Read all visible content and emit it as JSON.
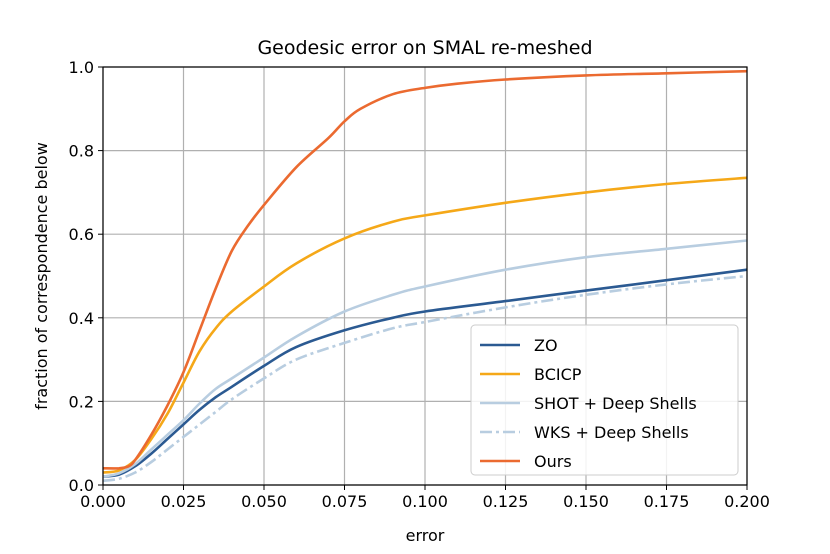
{
  "chart_data": {
    "type": "line",
    "title": "Geodesic error on SMAL re-meshed",
    "xlabel": "error",
    "ylabel": "fraction of correspondence below",
    "xlim": [
      0.0,
      0.2
    ],
    "ylim": [
      0.0,
      1.0
    ],
    "xticks": [
      "0.000",
      "0.025",
      "0.050",
      "0.075",
      "0.100",
      "0.125",
      "0.150",
      "0.175",
      "0.200"
    ],
    "yticks": [
      "0.0",
      "0.2",
      "0.4",
      "0.6",
      "0.8",
      "1.0"
    ],
    "grid": true,
    "legend_position": "lower-right",
    "series": [
      {
        "name": "ZO",
        "color": "#2b5a92",
        "dash": "solid",
        "x": [
          0,
          0.005,
          0.01,
          0.015,
          0.02,
          0.025,
          0.03,
          0.035,
          0.04,
          0.05,
          0.06,
          0.075,
          0.09,
          0.1,
          0.125,
          0.15,
          0.175,
          0.2
        ],
        "y": [
          0.02,
          0.025,
          0.045,
          0.075,
          0.11,
          0.145,
          0.18,
          0.21,
          0.235,
          0.285,
          0.33,
          0.37,
          0.4,
          0.415,
          0.44,
          0.465,
          0.49,
          0.515
        ]
      },
      {
        "name": "BCICP",
        "color": "#f5a818",
        "dash": "solid",
        "x": [
          0,
          0.005,
          0.01,
          0.015,
          0.02,
          0.025,
          0.03,
          0.035,
          0.04,
          0.05,
          0.06,
          0.075,
          0.09,
          0.1,
          0.125,
          0.15,
          0.175,
          0.2
        ],
        "y": [
          0.03,
          0.035,
          0.06,
          0.11,
          0.17,
          0.245,
          0.32,
          0.375,
          0.415,
          0.475,
          0.53,
          0.59,
          0.63,
          0.645,
          0.675,
          0.7,
          0.72,
          0.735
        ]
      },
      {
        "name": "SHOT + Deep Shells",
        "color": "#b8cde0",
        "dash": "solid",
        "x": [
          0,
          0.005,
          0.01,
          0.015,
          0.02,
          0.025,
          0.03,
          0.035,
          0.04,
          0.05,
          0.06,
          0.075,
          0.09,
          0.1,
          0.125,
          0.15,
          0.175,
          0.2
        ],
        "y": [
          0.02,
          0.028,
          0.05,
          0.085,
          0.12,
          0.155,
          0.195,
          0.23,
          0.255,
          0.305,
          0.355,
          0.415,
          0.455,
          0.475,
          0.515,
          0.545,
          0.565,
          0.585
        ]
      },
      {
        "name": "WKS + Deep Shells",
        "color": "#b8cde0",
        "dash": "dashdot",
        "x": [
          0,
          0.005,
          0.01,
          0.015,
          0.02,
          0.025,
          0.03,
          0.035,
          0.04,
          0.05,
          0.06,
          0.075,
          0.09,
          0.1,
          0.125,
          0.15,
          0.175,
          0.2
        ],
        "y": [
          0.01,
          0.015,
          0.03,
          0.055,
          0.085,
          0.115,
          0.145,
          0.175,
          0.205,
          0.255,
          0.3,
          0.34,
          0.375,
          0.39,
          0.425,
          0.455,
          0.48,
          0.5
        ]
      },
      {
        "name": "Ours",
        "color": "#eb6a30",
        "dash": "solid",
        "x": [
          0,
          0.005,
          0.008,
          0.01,
          0.015,
          0.02,
          0.025,
          0.03,
          0.035,
          0.04,
          0.045,
          0.05,
          0.06,
          0.07,
          0.075,
          0.08,
          0.09,
          0.1,
          0.11,
          0.125,
          0.15,
          0.175,
          0.2
        ],
        "y": [
          0.04,
          0.04,
          0.045,
          0.06,
          0.12,
          0.19,
          0.27,
          0.37,
          0.47,
          0.56,
          0.62,
          0.67,
          0.76,
          0.83,
          0.87,
          0.9,
          0.935,
          0.95,
          0.96,
          0.97,
          0.98,
          0.985,
          0.99
        ]
      }
    ]
  }
}
